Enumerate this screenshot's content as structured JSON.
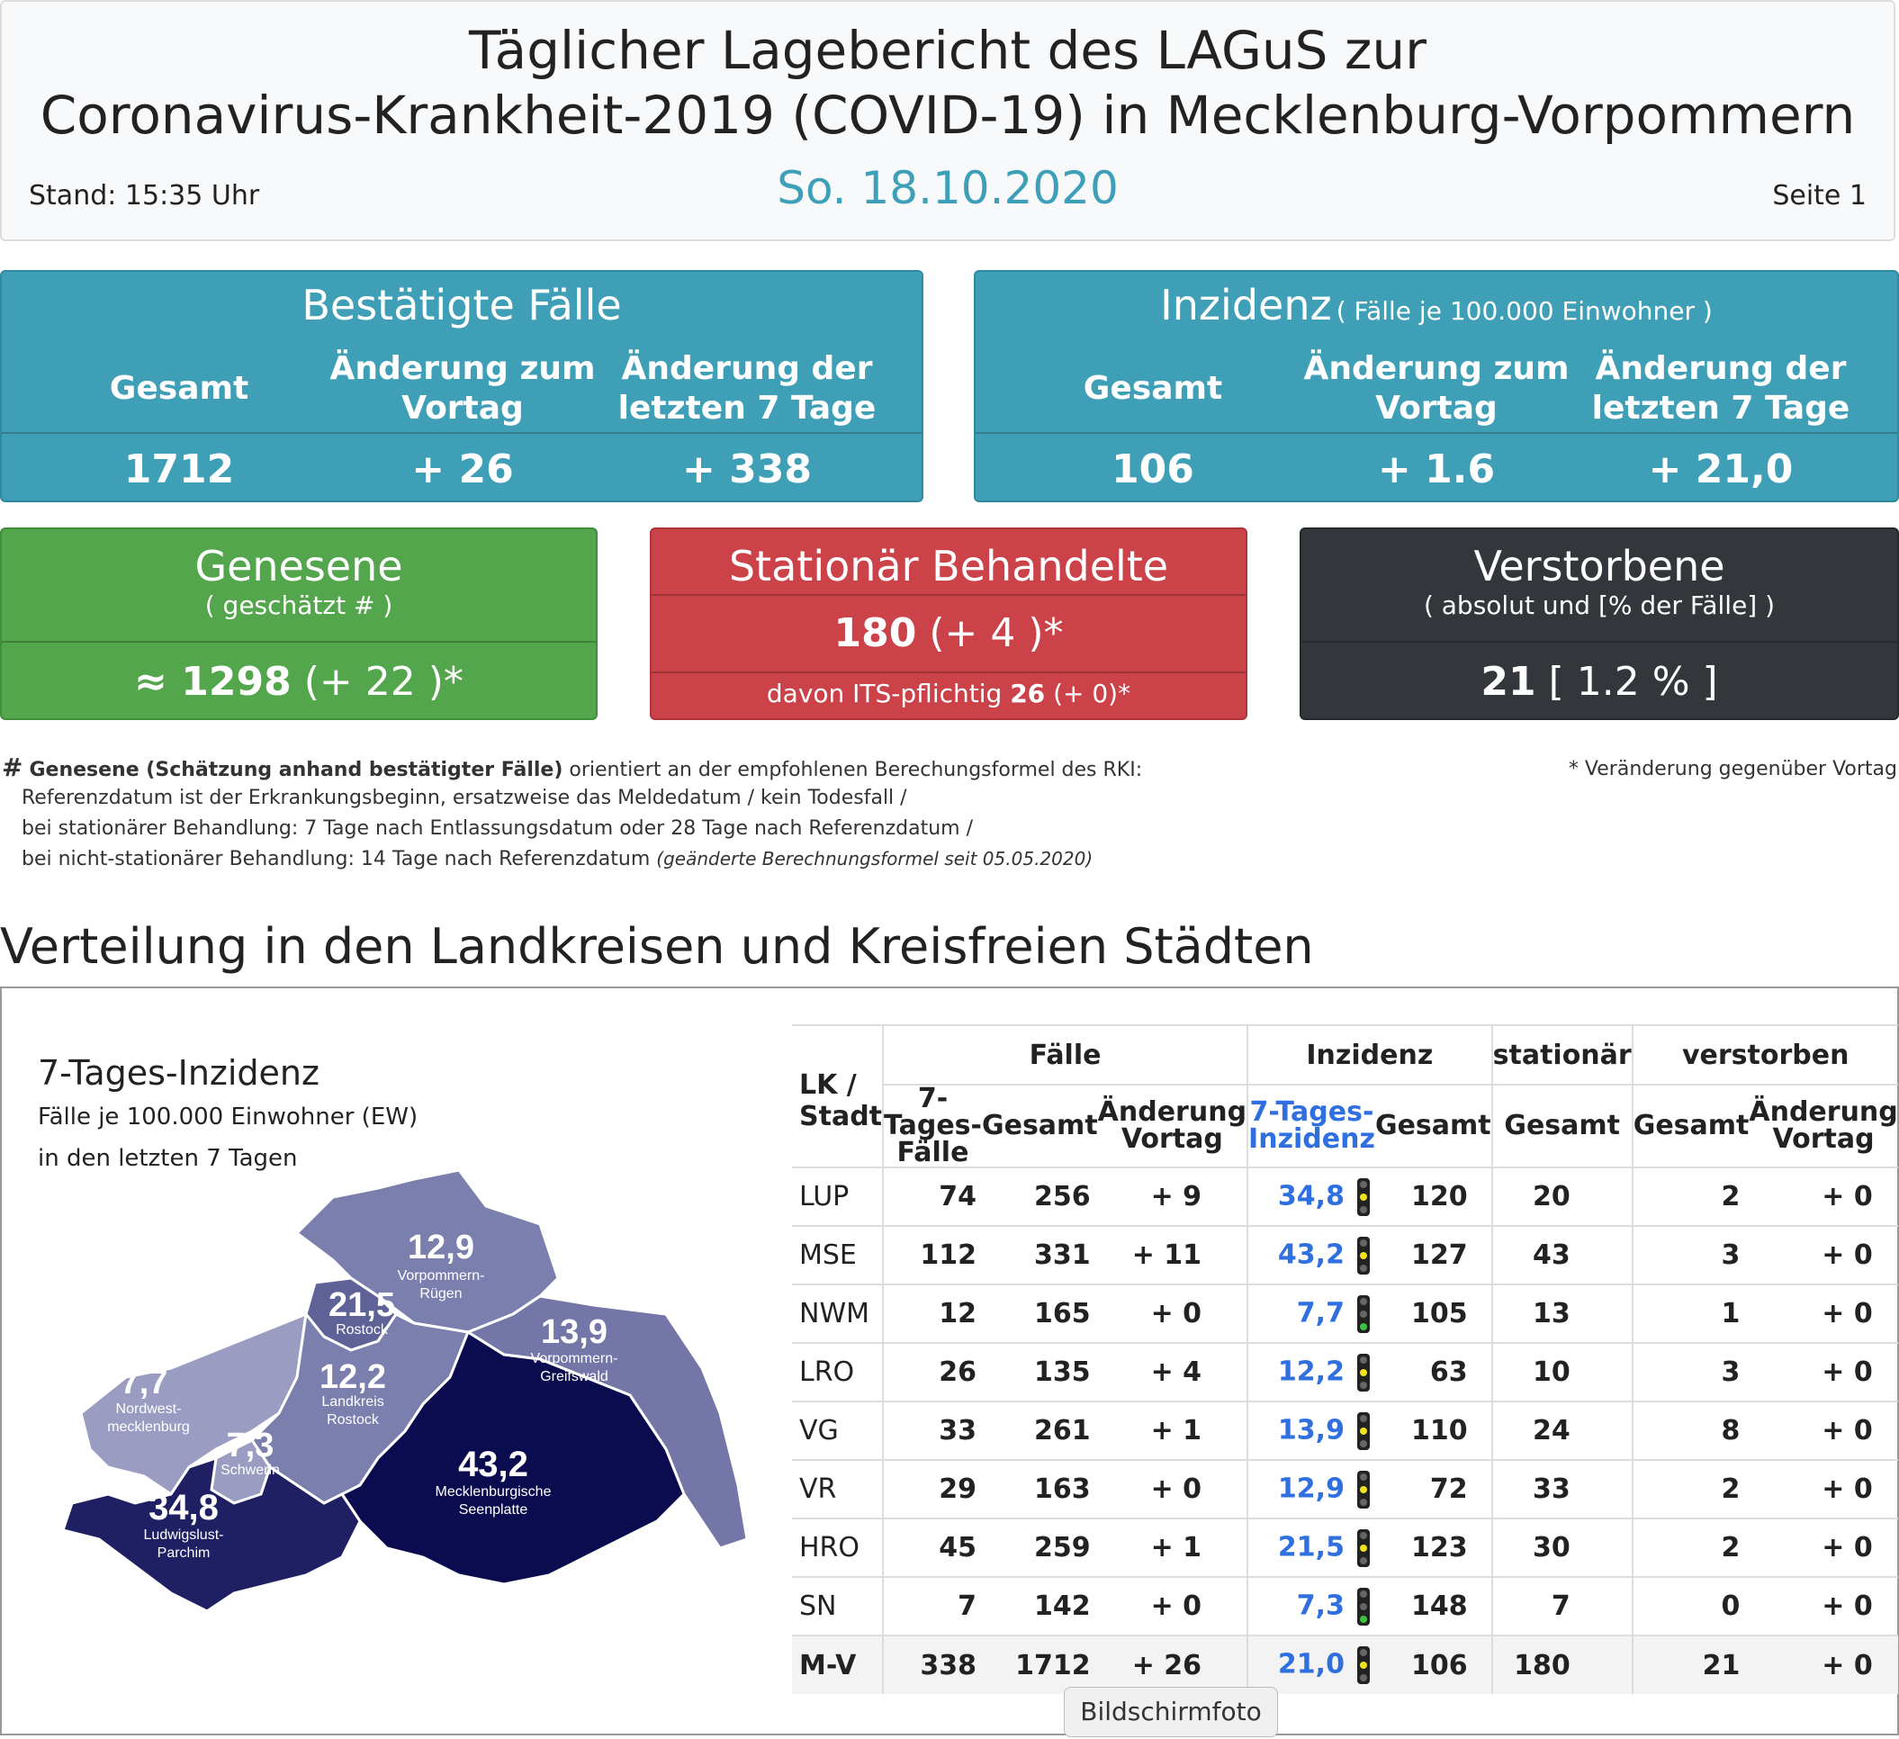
{
  "header": {
    "title_line1": "Täglicher Lagebericht des LAGuS zur",
    "title_line2": "Coronavirus-Krankheit-2019 (COVID-19) in Mecklenburg-Vorpommern",
    "date": "So. 18.10.2020",
    "stand": "Stand: 15:35 Uhr",
    "page": "Seite 1"
  },
  "cases_box": {
    "title": "Bestätigte Fälle",
    "col1": "Gesamt",
    "col2_l1": "Änderung zum",
    "col2_l2": "Vortag",
    "col3_l1": "Änderung der",
    "col3_l2": "letzten 7 Tage",
    "total": "1712",
    "change_day": "+ 26",
    "change_7": "+ 338",
    "color": "#3f9fb6"
  },
  "incidence_box": {
    "title": "Inzidenz",
    "title_suffix": "( Fälle je 100.000 Einwohner )",
    "col1": "Gesamt",
    "col2_l1": "Änderung zum",
    "col2_l2": "Vortag",
    "col3_l1": "Änderung der",
    "col3_l2": "letzten 7 Tage",
    "total": "106",
    "change_day": "+ 1.6",
    "change_7": "+ 21,0"
  },
  "recovered_box": {
    "title": "Genesene",
    "subtitle": "( geschätzt # )",
    "value": "≈ 1298",
    "change": "(+ 22 )*",
    "color": "#53a64b"
  },
  "hospital_box": {
    "title": "Stationär Behandelte",
    "value": "180",
    "change": "(+ 4 )*",
    "its_label": "davon ITS-pflichtig",
    "its_value": "26",
    "its_change": "(+ 0)*",
    "color": "#cb4249"
  },
  "deaths_box": {
    "title": "Verstorbene",
    "subtitle": "( absolut und [% der Fälle] )",
    "value": "21",
    "percent": "[ 1.2 % ]",
    "color": "#33363b"
  },
  "footnote": {
    "hash_mark": "#",
    "line1_bold": "Genesene (Schätzung anhand bestätigter Fälle)",
    "line1_rest": "orientiert an der empfohlenen Berechungsformel des RKI:",
    "line2": "Referenzdatum ist der Erkrankungsbeginn, ersatzweise das Meldedatum / kein Todesfall /",
    "line3": "bei stationärer Behandlung: 7 Tage nach Entlassungsdatum oder 28 Tage nach Referenzdatum /",
    "line4": "bei nicht-stationärer Behandlung: 14 Tage nach Referenzdatum",
    "line4_italic": "(geänderte Berechnungsformel seit 05.05.2020)",
    "star_note": "* Veränderung gegenüber Vortag"
  },
  "section_title": "Verteilung in den Landkreisen und Kreisfreien Städten",
  "map": {
    "title": "7-Tages-Inzidenz",
    "sub1": "Fälle je 100.000 Einwohner (EW)",
    "sub2": "in den letzten 7 Tagen",
    "regions": [
      {
        "value": "12,9",
        "name1": "Vorpommern-",
        "name2": "Rügen",
        "color": "#7b7fad"
      },
      {
        "value": "21,5",
        "name1": "Rostock",
        "name2": "",
        "color": "#5e6297"
      },
      {
        "value": "13,9",
        "name1": "Vorpommern-",
        "name2": "Greifswald",
        "color": "#7376a6"
      },
      {
        "value": "7,7",
        "name1": "Nordwest-",
        "name2": "mecklenburg",
        "color": "#9a9dc1"
      },
      {
        "value": "12,2",
        "name1": "Landkreis",
        "name2": "Rostock",
        "color": "#7b7fad"
      },
      {
        "value": "7,3",
        "name1": "Schwerin",
        "name2": "",
        "color": "#9a9dc1"
      },
      {
        "value": "43,2",
        "name1": "Mecklenburgische",
        "name2": "Seenplatte",
        "color": "#0b0b4f"
      },
      {
        "value": "34,8",
        "name1": "Ludwigslust-",
        "name2": "Parchim",
        "color": "#1f1f63"
      }
    ]
  },
  "table": {
    "head_lk_1": "LK /",
    "head_lk_2": "Stadt",
    "group_faelle": "Fälle",
    "group_inzidenz": "Inzidenz",
    "group_stationaer": "stationär",
    "group_verstorben": "verstorben",
    "sub_7tf_1": "7-Tages-",
    "sub_7tf_2": "Fälle",
    "sub_gesamt": "Gesamt",
    "sub_aend_1": "Änderung",
    "sub_aend_2": "Vortag",
    "sub_7ti_1": "7-Tages-",
    "sub_7ti_2": "Inzidenz",
    "rows": [
      {
        "lk": "LUP",
        "f7": "74",
        "fg": "256",
        "fc": "+ 9",
        "i7": "34,8",
        "light": "yellow",
        "ig": "120",
        "st": "20",
        "vg": "2",
        "vc": "+ 0"
      },
      {
        "lk": "MSE",
        "f7": "112",
        "fg": "331",
        "fc": "+ 11",
        "i7": "43,2",
        "light": "yellow",
        "ig": "127",
        "st": "43",
        "vg": "3",
        "vc": "+ 0"
      },
      {
        "lk": "NWM",
        "f7": "12",
        "fg": "165",
        "fc": "+ 0",
        "i7": "7,7",
        "light": "green",
        "ig": "105",
        "st": "13",
        "vg": "1",
        "vc": "+ 0"
      },
      {
        "lk": "LRO",
        "f7": "26",
        "fg": "135",
        "fc": "+ 4",
        "i7": "12,2",
        "light": "yellow",
        "ig": "63",
        "st": "10",
        "vg": "3",
        "vc": "+ 0"
      },
      {
        "lk": "VG",
        "f7": "33",
        "fg": "261",
        "fc": "+ 1",
        "i7": "13,9",
        "light": "yellow",
        "ig": "110",
        "st": "24",
        "vg": "8",
        "vc": "+ 0"
      },
      {
        "lk": "VR",
        "f7": "29",
        "fg": "163",
        "fc": "+ 0",
        "i7": "12,9",
        "light": "yellow",
        "ig": "72",
        "st": "33",
        "vg": "2",
        "vc": "+ 0"
      },
      {
        "lk": "HRO",
        "f7": "45",
        "fg": "259",
        "fc": "+ 1",
        "i7": "21,5",
        "light": "yellow",
        "ig": "123",
        "st": "30",
        "vg": "2",
        "vc": "+ 0"
      },
      {
        "lk": "SN",
        "f7": "7",
        "fg": "142",
        "fc": "+ 0",
        "i7": "7,3",
        "light": "green",
        "ig": "148",
        "st": "7",
        "vg": "0",
        "vc": "+ 0"
      },
      {
        "lk": "M-V",
        "f7": "338",
        "fg": "1712",
        "fc": "+ 26",
        "i7": "21,0",
        "light": "yellow",
        "ig": "106",
        "st": "180",
        "vg": "21",
        "vc": "+ 0"
      }
    ]
  },
  "tooltip": "Bildschirmfoto"
}
